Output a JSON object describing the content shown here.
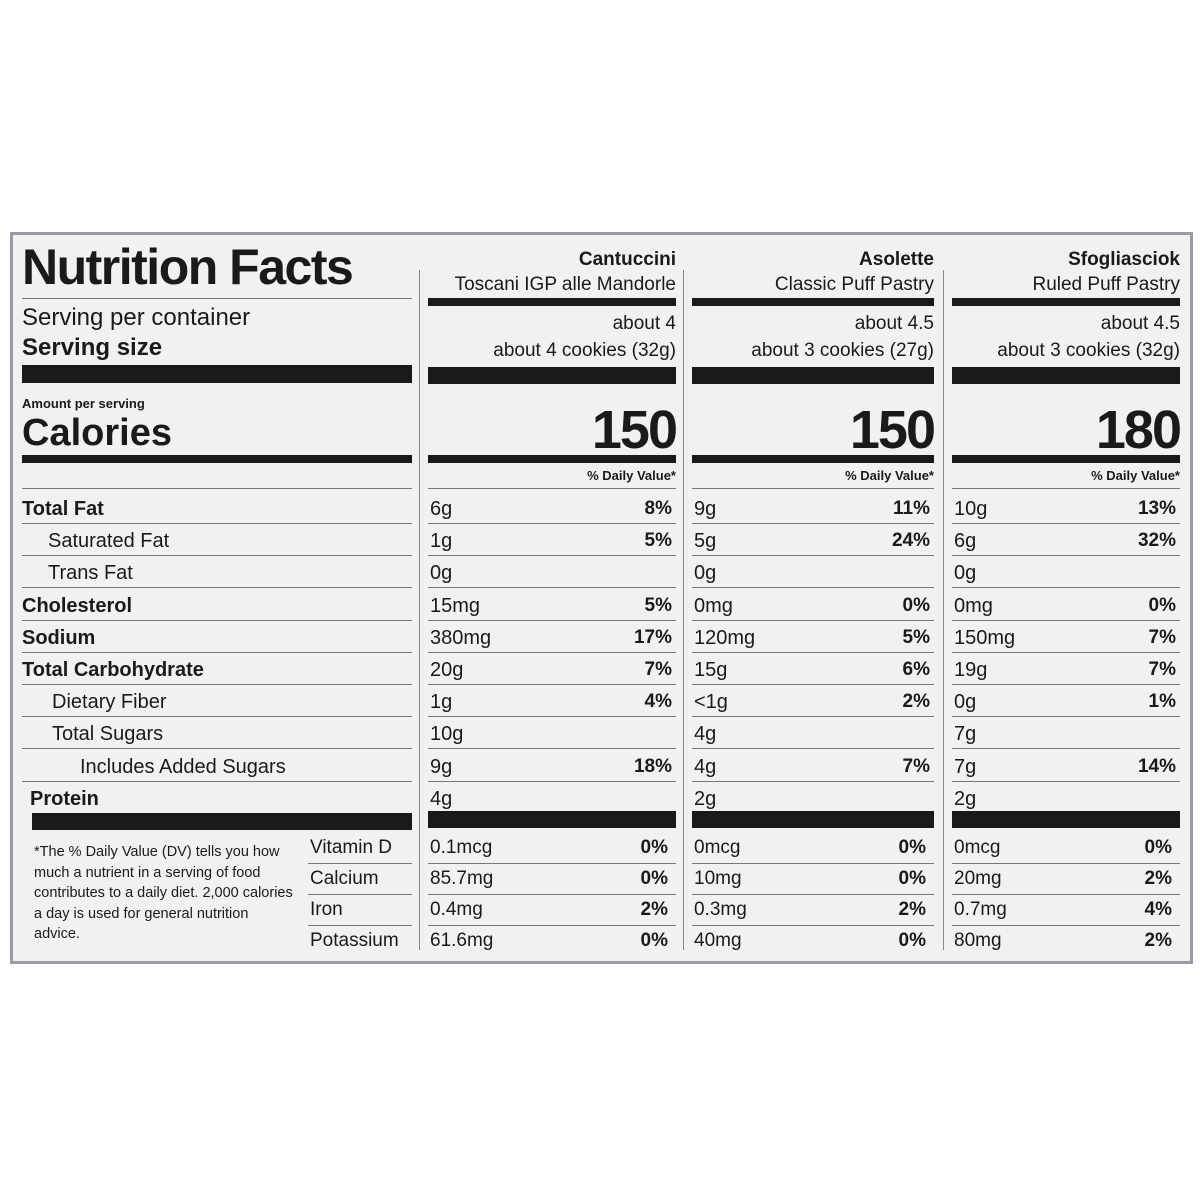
{
  "title": "Nutrition Facts",
  "serving_per_container_label": "Serving per container",
  "serving_size_label": "Serving size",
  "amount_per_serving": "Amount per serving",
  "calories_label": "Calories",
  "daily_value_header": "% Daily Value*",
  "nutrients": [
    "Total Fat",
    "Saturated Fat",
    "Trans Fat",
    "Cholesterol",
    "Sodium",
    "Total Carbohydrate",
    "Dietary Fiber",
    "Total Sugars",
    "Includes Added Sugars",
    "Protein"
  ],
  "footnote": "*The % Daily Value (DV) tells you how much a nutrient in a serving of food contributes to a daily diet. 2,000 calories a day is used for general nutrition advice.",
  "vitamins": [
    "Vitamin D",
    "Calcium",
    "Iron",
    "Potassium"
  ],
  "products": [
    {
      "name": "Cantuccini",
      "subtitle": "Toscani IGP alle Mandorle",
      "servings": "about 4",
      "serving_size": "about 4 cookies (32g)",
      "calories": 150,
      "nutrients": [
        [
          "6g",
          "8%"
        ],
        [
          "1g",
          "5%"
        ],
        [
          "0g",
          null
        ],
        [
          "15mg",
          "5%"
        ],
        [
          "380mg",
          "17%"
        ],
        [
          "20g",
          "7%"
        ],
        [
          "1g",
          "4%"
        ],
        [
          "10g",
          null
        ],
        [
          "9g",
          "18%"
        ],
        [
          "4g",
          null
        ]
      ],
      "vitamins": [
        [
          "0.1mcg",
          "0%"
        ],
        [
          "85.7mg",
          "0%"
        ],
        [
          "0.4mg",
          "2%"
        ],
        [
          "61.6mg",
          "0%"
        ]
      ]
    },
    {
      "name": "Asolette",
      "subtitle": "Classic Puff Pastry",
      "servings": "about 4.5",
      "serving_size": "about 3 cookies (27g)",
      "calories": 150,
      "nutrients": [
        [
          "9g",
          "11%"
        ],
        [
          "5g",
          "24%"
        ],
        [
          "0g",
          null
        ],
        [
          "0mg",
          "0%"
        ],
        [
          "120mg",
          "5%"
        ],
        [
          "15g",
          "6%"
        ],
        [
          "<1g",
          "2%"
        ],
        [
          "4g",
          null
        ],
        [
          "4g",
          "7%"
        ],
        [
          "2g",
          null
        ]
      ],
      "vitamins": [
        [
          "0mcg",
          "0%"
        ],
        [
          "10mg",
          "0%"
        ],
        [
          "0.3mg",
          "2%"
        ],
        [
          "40mg",
          "0%"
        ]
      ]
    },
    {
      "name": "Sfogliasciok",
      "subtitle": "Ruled Puff Pastry",
      "servings": "about 4.5",
      "serving_size": "about 3 cookies (32g)",
      "calories": 180,
      "nutrients": [
        [
          "10g",
          "13%"
        ],
        [
          "6g",
          "32%"
        ],
        [
          "0g",
          null
        ],
        [
          "0mg",
          "0%"
        ],
        [
          "150mg",
          "7%"
        ],
        [
          "19g",
          "7%"
        ],
        [
          "0g",
          "1%"
        ],
        [
          "7g",
          null
        ],
        [
          "7g",
          "14%"
        ],
        [
          "2g",
          null
        ]
      ],
      "vitamins": [
        [
          "0mcg",
          "0%"
        ],
        [
          "20mg",
          "2%"
        ],
        [
          "0.7mg",
          "4%"
        ],
        [
          "80mg",
          "2%"
        ]
      ]
    }
  ]
}
